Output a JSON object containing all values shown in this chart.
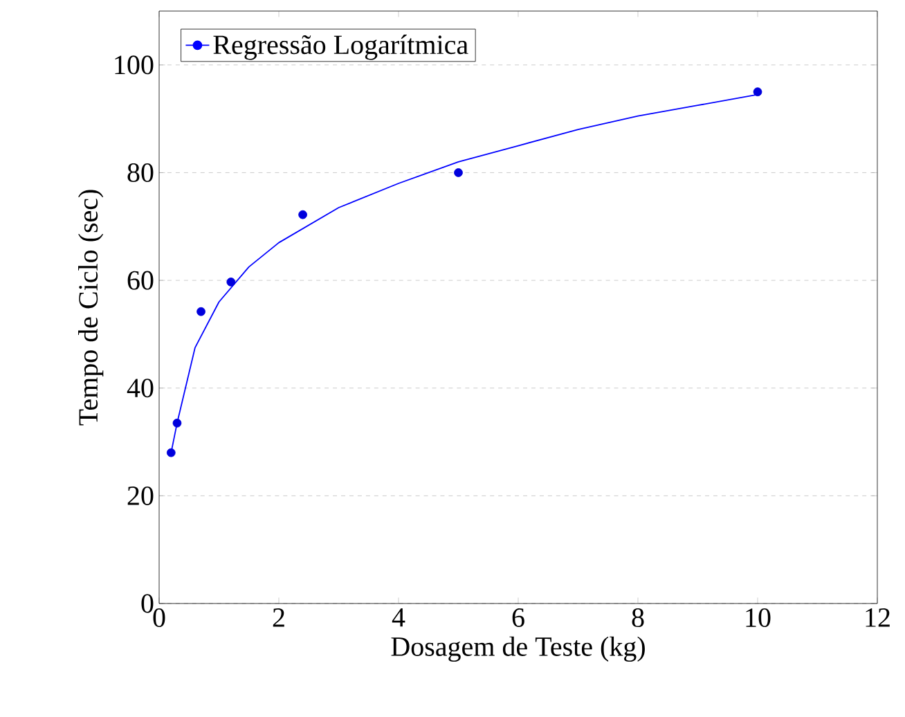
{
  "chart_data": {
    "type": "scatter",
    "xlabel": "Dosagem de Teste (kg)",
    "ylabel": "Tempo de Ciclo (sec)",
    "xlim": [
      0,
      12
    ],
    "ylim": [
      0,
      110
    ],
    "xticks": [
      0,
      2,
      4,
      6,
      8,
      10,
      12
    ],
    "yticks": [
      0,
      20,
      40,
      60,
      80,
      100
    ],
    "grid": "y",
    "legend": "top left",
    "series": [
      {
        "type": "line",
        "name": "Regressão Logarítmica",
        "color": "#0000ff",
        "marker": "none",
        "x": [
          0.2,
          0.3,
          0.6,
          1,
          1.5,
          2,
          3,
          4,
          5,
          6,
          7,
          8,
          9,
          10
        ],
        "values": [
          28,
          33.5,
          47.5,
          56,
          62.5,
          67,
          73.5,
          78,
          82,
          85,
          88,
          90.5,
          92.5,
          94.5
        ]
      },
      {
        "color": "#0000dd",
        "marker": "circle",
        "x": [
          0.2,
          0.3,
          0.7,
          1.2,
          2.4,
          5,
          10
        ],
        "values": [
          28,
          33.5,
          54.2,
          59.7,
          72.2,
          80,
          95
        ]
      }
    ]
  }
}
